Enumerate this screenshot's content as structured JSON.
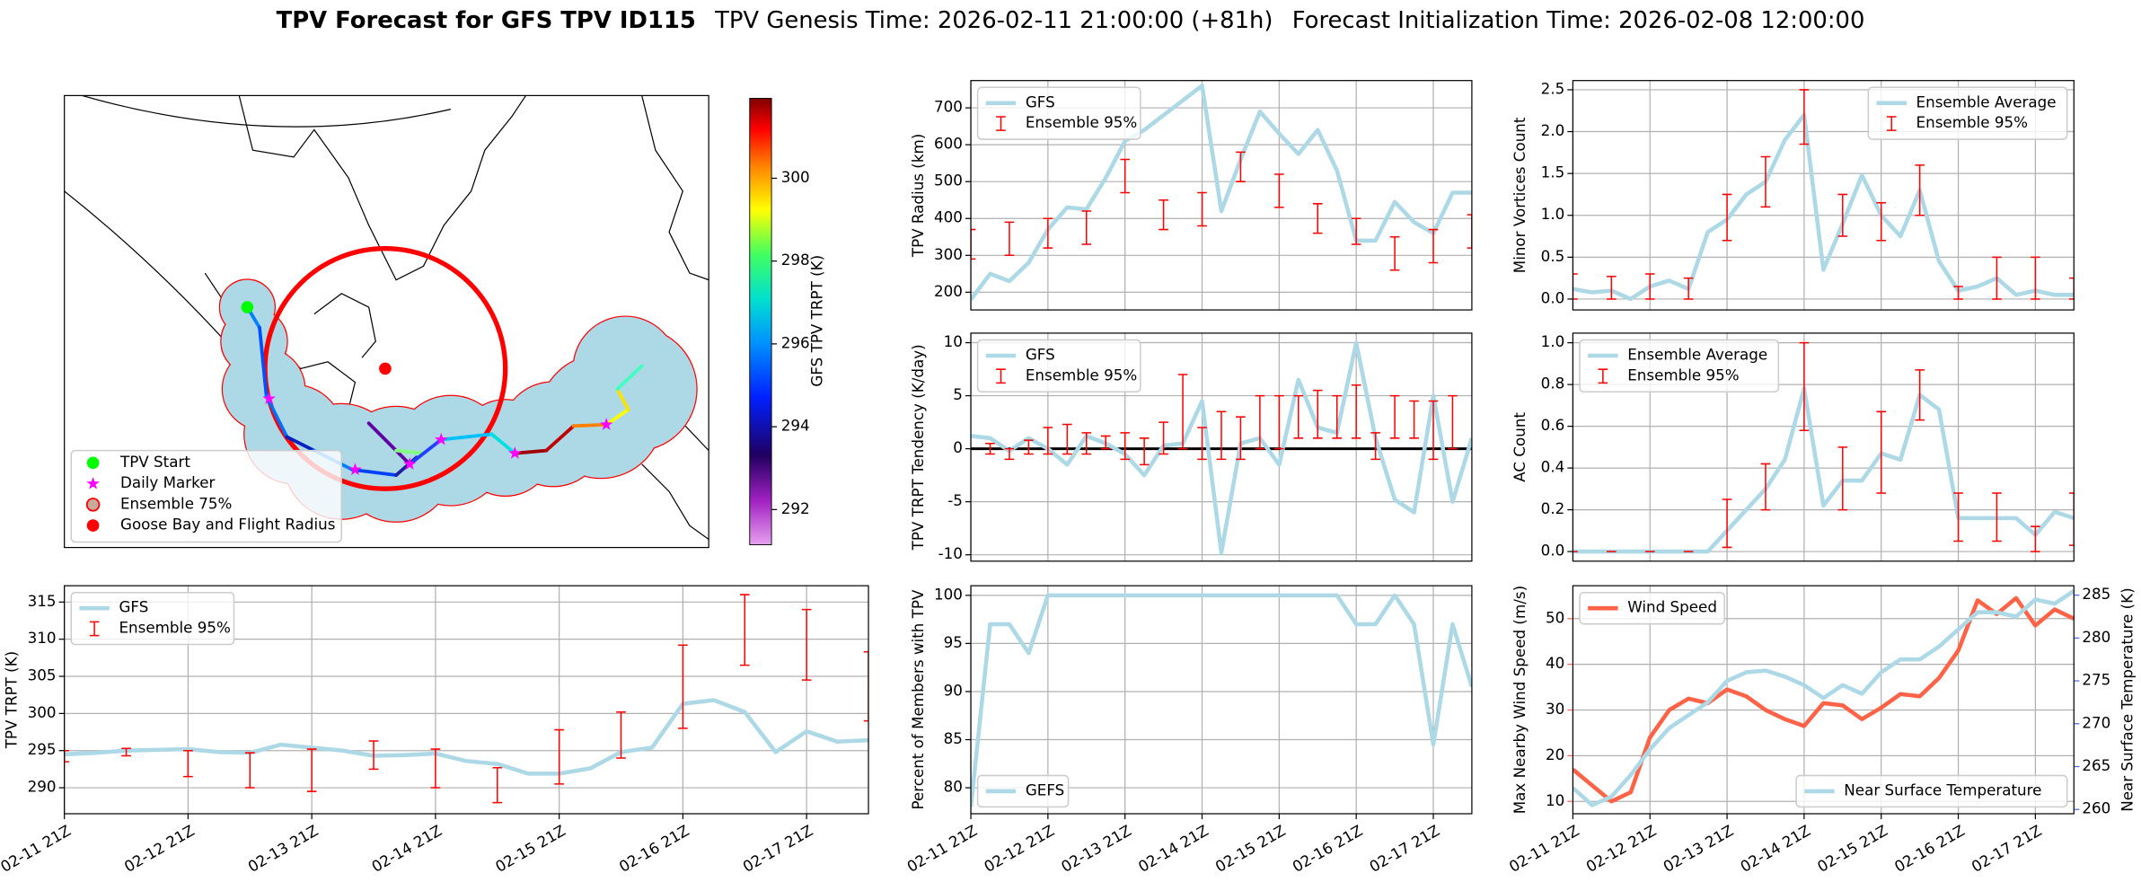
{
  "title": "TPV Forecast for GFS TPV ID115",
  "subtitle": [
    "TPV Genesis Time: 2026-02-11 21:00:00 (+81h)",
    "Forecast Initialization Time: 2026-02-08 12:00:00"
  ],
  "chart_data": [
    {
      "type": "map",
      "legend": [
        {
          "name": "TPV Start",
          "color": "#00ff00"
        },
        {
          "name": "Daily Marker",
          "color": "#ff00ff"
        },
        {
          "name": "Ensemble 75%",
          "color": "#c9a99a",
          "edgecolor": "#ff0000"
        },
        {
          "name": "Goose Bay and Flight Radius",
          "color": "#ff0000"
        }
      ],
      "colorbar": {
        "label": "GFS TPV TRPT (K)",
        "lim": [
          291.15,
          301.93
        ],
        "ticks": [
          292,
          294,
          296,
          298,
          300
        ]
      }
    },
    {
      "type": "line",
      "ylabel": "TPV Radius (km)",
      "ylim": [
        152,
        774
      ],
      "yticks": [
        200,
        300,
        400,
        500,
        600,
        700
      ],
      "grid": true,
      "legend": "upper left",
      "series": [
        {
          "name": "GFS",
          "color": "#add8e6",
          "values": [
            180,
            250,
            230,
            280,
            370,
            430,
            425,
            510,
            610,
            640,
            680,
            720,
            760,
            420,
            560,
            690,
            630,
            575,
            640,
            530,
            340,
            340,
            445,
            390,
            360,
            470,
            470
          ]
        }
      ],
      "errorbars": {
        "name": "Ensemble 95%",
        "color": "#ff0000",
        "lower": [
          290,
          null,
          300,
          null,
          320,
          null,
          330,
          null,
          470,
          null,
          370,
          null,
          380,
          null,
          500,
          null,
          430,
          null,
          360,
          null,
          330,
          null,
          260,
          null,
          280,
          null,
          320
        ],
        "upper": [
          370,
          null,
          390,
          null,
          400,
          null,
          420,
          null,
          560,
          null,
          450,
          null,
          470,
          null,
          580,
          null,
          520,
          null,
          440,
          null,
          400,
          null,
          350,
          null,
          370,
          null,
          410
        ]
      }
    },
    {
      "type": "line",
      "ylabel": "Minor Vortices Count",
      "ylim": [
        -0.13,
        2.61
      ],
      "yticks": [
        {
          "value": 0,
          "label": "0.0"
        },
        0.5,
        {
          "value": 1,
          "label": "1.0"
        },
        1.5,
        {
          "value": 2,
          "label": "2.0"
        },
        2.5
      ],
      "grid": true,
      "legend": "upper right",
      "series": [
        {
          "name": "Ensemble Average",
          "color": "#add8e6",
          "values": [
            0.12,
            0.08,
            0.1,
            0,
            0.15,
            0.22,
            0.12,
            0.8,
            0.95,
            1.25,
            1.4,
            1.9,
            2.2,
            0.35,
            0.9,
            1.48,
            1.0,
            0.75,
            1.3,
            0.45,
            0.1,
            0.15,
            0.25,
            0.05,
            0.1,
            0.05,
            0.05
          ]
        }
      ],
      "errorbars": {
        "name": "Ensemble 95%",
        "color": "#ff0000",
        "lower": [
          0,
          null,
          0,
          null,
          0,
          null,
          0,
          null,
          0.7,
          null,
          1.1,
          null,
          1.85,
          null,
          0.75,
          null,
          0.7,
          null,
          1.0,
          null,
          0,
          null,
          0,
          null,
          0,
          null,
          0
        ],
        "upper": [
          0.3,
          null,
          0.27,
          null,
          0.3,
          null,
          0.25,
          null,
          1.25,
          null,
          1.7,
          null,
          2.5,
          null,
          1.25,
          null,
          1.15,
          null,
          1.6,
          null,
          0.15,
          null,
          0.5,
          null,
          0.5,
          null,
          0.25
        ]
      }
    },
    {
      "type": "line",
      "ylabel": "TPV TRPT Tendency (K/day)",
      "ylim": [
        -10.6,
        10.9
      ],
      "yticks": [
        -10,
        -5,
        0,
        5,
        10
      ],
      "grid": true,
      "legend": "upper left",
      "hline": 0,
      "hline_color": "#000000",
      "series": [
        {
          "name": "GFS",
          "color": "#add8e6",
          "values": [
            1.2,
            1.0,
            -0.2,
            1.0,
            0,
            -1.5,
            1.2,
            0.5,
            -0.5,
            -2.5,
            0.3,
            0.5,
            4.5,
            -9.8,
            0.5,
            1.0,
            -1.5,
            6.5,
            2.0,
            1.5,
            10.0,
            1.0,
            -4.8,
            -6.0,
            5.0,
            -5.0,
            1.0
          ]
        }
      ],
      "errorbars": {
        "name": "Ensemble 95%",
        "color": "#ff0000",
        "lower": [
          null,
          -0.5,
          -1,
          -0.5,
          -0.5,
          -0.5,
          -0.5,
          0,
          -1,
          -1.5,
          -0.5,
          0,
          -1,
          -1,
          -1,
          0,
          0,
          1,
          1,
          1,
          1,
          -1,
          1,
          1,
          -1,
          0,
          null
        ],
        "upper": [
          null,
          0.5,
          0,
          0.8,
          2,
          2.3,
          1.5,
          1.2,
          1.5,
          1,
          2.5,
          7,
          2,
          3.5,
          3,
          5,
          5,
          5,
          5.5,
          5,
          6,
          1.5,
          5,
          4.5,
          4.5,
          5,
          null
        ]
      }
    },
    {
      "type": "line",
      "ylabel": "AC Count",
      "ylim": [
        -0.046,
        1.046
      ],
      "yticks": [
        {
          "value": 0,
          "label": "0.0"
        },
        0.2,
        0.4,
        0.6,
        0.8,
        {
          "value": 1,
          "label": "1.0"
        }
      ],
      "grid": true,
      "legend": "upper left",
      "series": [
        {
          "name": "Ensemble Average",
          "color": "#add8e6",
          "values": [
            0,
            0,
            0,
            0,
            0,
            0,
            0,
            0,
            0.1,
            0.2,
            0.3,
            0.44,
            0.78,
            0.22,
            0.34,
            0.34,
            0.47,
            0.44,
            0.75,
            0.68,
            0.16,
            0.16,
            0.16,
            0.16,
            0.08,
            0.19,
            0.16
          ]
        }
      ],
      "errorbars": {
        "name": "Ensemble 95%",
        "color": "#ff0000",
        "lower": [
          0,
          null,
          0,
          null,
          0,
          null,
          0,
          null,
          0.02,
          null,
          0.2,
          null,
          0.58,
          null,
          0.2,
          null,
          0.28,
          null,
          0.63,
          null,
          0.05,
          null,
          0.05,
          null,
          0,
          null,
          0.03
        ],
        "upper": [
          0,
          null,
          0,
          null,
          0,
          null,
          0,
          null,
          0.25,
          null,
          0.42,
          null,
          1.0,
          null,
          0.5,
          null,
          0.67,
          null,
          0.87,
          null,
          0.28,
          null,
          0.28,
          null,
          0.12,
          null,
          0.28
        ]
      }
    },
    {
      "type": "line",
      "ylabel": "TPV TRPT (K)",
      "ylim": [
        286.5,
        317.2
      ],
      "yticks": [
        290,
        295,
        300,
        305,
        310,
        315
      ],
      "grid": true,
      "legend": "upper left",
      "categories": [
        "02-11 21Z",
        null,
        null,
        null,
        "02-12 21Z",
        null,
        null,
        null,
        "02-13 21Z",
        null,
        null,
        null,
        "02-14 21Z",
        null,
        null,
        null,
        "02-15 21Z",
        null,
        null,
        null,
        "02-16 21Z",
        null,
        null,
        null,
        "02-17 21Z",
        null,
        null
      ],
      "series": [
        {
          "name": "GFS",
          "color": "#add8e6",
          "values": [
            294.5,
            294.7,
            295,
            295.1,
            295.2,
            294.8,
            294.7,
            295.8,
            295.4,
            295,
            294.3,
            294.4,
            294.6,
            293.6,
            293.2,
            291.9,
            291.9,
            292.6,
            294.8,
            295.4,
            301.3,
            301.8,
            300.2,
            294.8,
            297.6,
            296.2,
            296.4
          ]
        }
      ],
      "errorbars": {
        "name": "Ensemble 95%",
        "color": "#ff0000",
        "lower": [
          293.5,
          null,
          294.3,
          null,
          291.5,
          null,
          290,
          null,
          289.5,
          null,
          292.5,
          null,
          290,
          null,
          288,
          null,
          290.5,
          null,
          294,
          null,
          298,
          null,
          306.5,
          null,
          304.5,
          null,
          299
        ],
        "upper": [
          295,
          null,
          295.3,
          null,
          295,
          null,
          294.7,
          null,
          295.2,
          null,
          296.3,
          null,
          295.2,
          null,
          292.7,
          null,
          297.8,
          null,
          300.2,
          null,
          309.2,
          null,
          316,
          null,
          314,
          null,
          308.3
        ]
      }
    },
    {
      "type": "line",
      "ylabel": "Percent of Members with TPV",
      "ylim": [
        77.3,
        101
      ],
      "yticks": [
        80,
        85,
        90,
        95,
        100
      ],
      "grid": true,
      "legend": "lower left",
      "categories": [
        "02-11 21Z",
        null,
        null,
        null,
        "02-12 21Z",
        null,
        null,
        null,
        "02-13 21Z",
        null,
        null,
        null,
        "02-14 21Z",
        null,
        null,
        null,
        "02-15 21Z",
        null,
        null,
        null,
        "02-16 21Z",
        null,
        null,
        null,
        "02-17 21Z",
        null,
        null
      ],
      "series": [
        {
          "name": "GEFS",
          "color": "#add8e6",
          "values": [
            78,
            97,
            97,
            94,
            100,
            100,
            100,
            100,
            100,
            100,
            100,
            100,
            100,
            100,
            100,
            100,
            100,
            100,
            100,
            100,
            97,
            97,
            100,
            97,
            84.5,
            97,
            90.5
          ]
        }
      ]
    },
    {
      "type": "line",
      "ylabel": "Max Nearby Wind Speed (m/s)",
      "ylabel_color": "#ff6347",
      "y2label": "Near Surface Temperature (K)",
      "y2label_color": "#4169e1",
      "ylim": [
        7.3,
        57.2
      ],
      "yticks": [
        10,
        20,
        30,
        40,
        50
      ],
      "y2lim": [
        259.5,
        286.1
      ],
      "y2ticks": [
        260,
        265,
        270,
        275,
        280,
        285
      ],
      "grid": true,
      "categories": [
        "02-11 21Z",
        null,
        null,
        null,
        "02-12 21Z",
        null,
        null,
        null,
        "02-13 21Z",
        null,
        null,
        null,
        "02-14 21Z",
        null,
        null,
        null,
        "02-15 21Z",
        null,
        null,
        null,
        "02-16 21Z",
        null,
        null,
        null,
        "02-17 21Z",
        null,
        null
      ],
      "series": [
        {
          "name": "Wind Speed",
          "color": "#ff6347",
          "legend": "upper left",
          "values": [
            17,
            13.5,
            10,
            12,
            24,
            30,
            32.5,
            31.5,
            34.5,
            33,
            30,
            28,
            26.5,
            31.5,
            31,
            28,
            30.5,
            33.5,
            33,
            37,
            43,
            54,
            51,
            54.5,
            48.5,
            52,
            50
          ]
        },
        {
          "name": "Near Surface Temperature",
          "color": "#add8e6",
          "axis": "y2",
          "legend": "lower right",
          "values": [
            262.5,
            260.5,
            261.5,
            264,
            267,
            269.5,
            271,
            272.5,
            275,
            276,
            276.2,
            275.5,
            274.5,
            273,
            274.5,
            273.5,
            276,
            277.5,
            277.5,
            279,
            281,
            283,
            283,
            282.5,
            284.5,
            284,
            285.5
          ]
        }
      ]
    }
  ]
}
